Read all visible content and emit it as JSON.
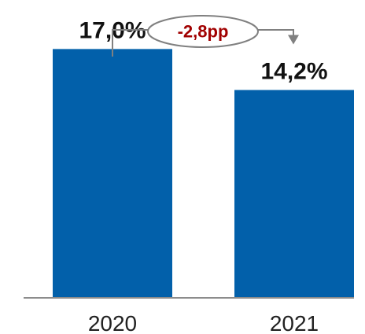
{
  "chart_data": {
    "type": "bar",
    "categories": [
      "2020",
      "2021"
    ],
    "values": [
      17.0,
      14.2
    ],
    "value_labels": [
      "17,0%",
      "14,2%"
    ],
    "ylim": [
      0,
      20
    ],
    "grid": false,
    "annotation": {
      "text": "-2,8pp",
      "from": "2020",
      "to": "2021"
    },
    "colors": {
      "bar": "#0260AA",
      "annotation_text": "#A10000",
      "connector": "#808080",
      "axis": "#8C8C8C"
    }
  }
}
